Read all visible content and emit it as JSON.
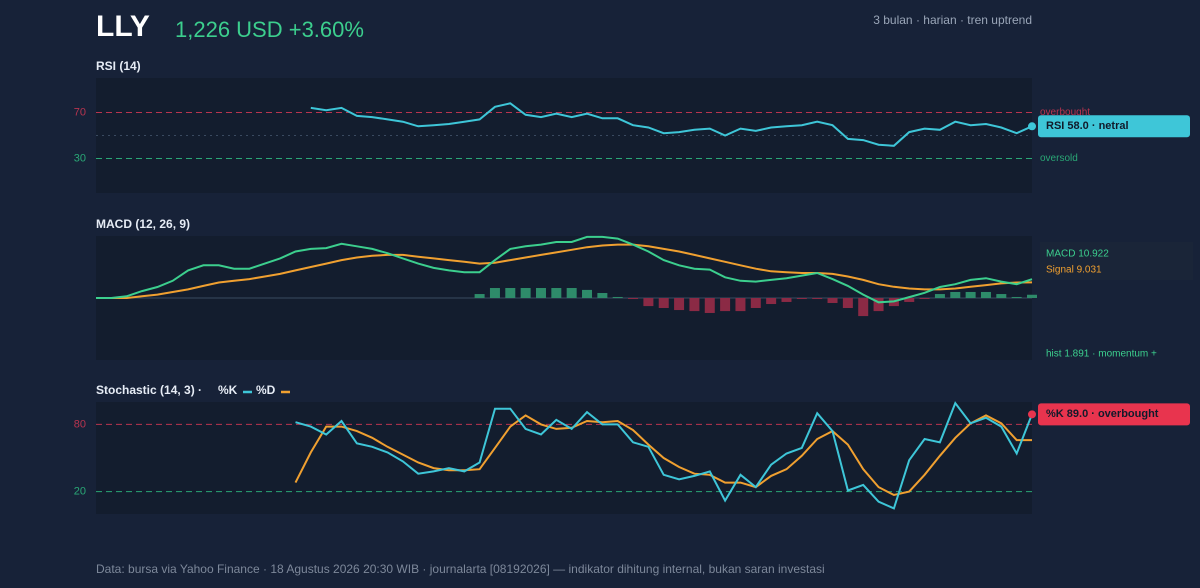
{
  "header": {
    "ticker": "LLY",
    "price": "1,226 USD +3.60%",
    "context": "3 bulan · harian · tren uptrend"
  },
  "footer": "Data: bursa via Yahoo Finance · 18 Agustus 2026 20:30 WIB · journalarta [08192026] — indikator dihitung internal, bukan saran investasi",
  "chart_data": [
    {
      "type": "line",
      "title": "RSI (14)",
      "ylim": [
        0,
        100
      ],
      "yticks": [
        30,
        70
      ],
      "reference_lines": [
        {
          "value": 70,
          "color": "#b8344f",
          "dash": "dashed",
          "label": "overbought"
        },
        {
          "value": 30,
          "color": "#2aa876",
          "dash": "dashed",
          "label": "oversold"
        },
        {
          "value": 50,
          "color": "#3a4a60",
          "dash": "dotted"
        }
      ],
      "series": [
        {
          "name": "RSI",
          "color": "#3ec6d8",
          "end_marker": true,
          "values": [
            null,
            null,
            null,
            null,
            null,
            null,
            null,
            null,
            null,
            null,
            null,
            null,
            null,
            null,
            74,
            72,
            74,
            67,
            66,
            64,
            62,
            58,
            59,
            60,
            62,
            64,
            75,
            78,
            68,
            66,
            69,
            66,
            69,
            65,
            65,
            59,
            57,
            52,
            53,
            55,
            56,
            50,
            56,
            54,
            57,
            58,
            59,
            62,
            59,
            47,
            46,
            42,
            41,
            53,
            56,
            55,
            62,
            59,
            60,
            57,
            52,
            58
          ]
        }
      ],
      "badge": {
        "text": "RSI 58.0 · netral",
        "color": "#3ec6d8"
      }
    },
    {
      "type": "line",
      "title": "MACD (12, 26, 9)",
      "ylim": [
        -36,
        36
      ],
      "reference_lines": [
        {
          "value": 0,
          "color": "#3a4a60",
          "dash": "solid"
        }
      ],
      "series": [
        {
          "name": "hist",
          "type": "bar",
          "color": "#2e8b6a",
          "negative_color": "#8b2a45",
          "values": [
            null,
            null,
            null,
            null,
            null,
            null,
            null,
            null,
            null,
            null,
            null,
            null,
            null,
            null,
            null,
            null,
            null,
            null,
            null,
            null,
            null,
            null,
            null,
            null,
            null,
            2.3,
            5.8,
            5.8,
            5.8,
            5.8,
            5.8,
            5.8,
            4.7,
            2.9,
            0.6,
            -0.6,
            -4.7,
            -5.8,
            -7,
            -7.6,
            -8.7,
            -7.6,
            -7.6,
            -5.8,
            -3.5,
            -2.3,
            -0.6,
            -0.6,
            -2.9,
            -5.8,
            -10.5,
            -7.6,
            -4.7,
            -2.3,
            -0.6,
            2.3,
            3.5,
            3.5,
            3.5,
            2.3,
            0.6,
            1.891
          ]
        },
        {
          "name": "Signal",
          "type": "line",
          "color": "#f0a030",
          "values": [
            0,
            0,
            0,
            1,
            2,
            3.5,
            5,
            7,
            9,
            10,
            11,
            12.5,
            14,
            16,
            18,
            20,
            22,
            23.5,
            24.5,
            25,
            25,
            24,
            23,
            22,
            21,
            20,
            20.5,
            22,
            23.5,
            25,
            26.5,
            28,
            29.5,
            30.5,
            31,
            31,
            30,
            28.5,
            27,
            25,
            23,
            21,
            19,
            17,
            15.5,
            15,
            14.5,
            14.5,
            14,
            12.5,
            10.5,
            8,
            6.5,
            5.5,
            5,
            5,
            5.5,
            6.5,
            7.5,
            8.5,
            9,
            9.031
          ]
        },
        {
          "name": "MACD",
          "type": "line",
          "color": "#3ccf8e",
          "values": [
            0,
            0,
            1,
            4,
            6.4,
            10,
            16,
            19,
            19,
            17,
            17,
            20,
            23,
            27,
            28.5,
            29,
            31.5,
            30,
            28.5,
            26,
            23,
            20,
            17.5,
            16,
            15,
            15,
            22,
            28.5,
            30,
            31,
            32.5,
            32.5,
            35.5,
            35.5,
            34.5,
            31,
            27,
            22,
            19,
            17,
            16.5,
            12,
            10,
            9.5,
            10.5,
            11.5,
            13,
            14.5,
            11,
            7,
            2,
            -2.5,
            -2,
            0.5,
            3,
            6.4,
            8,
            10.5,
            11.5,
            9.5,
            8,
            10.922
          ]
        }
      ],
      "annotations": [
        {
          "text": "MACD 10.922",
          "color": "#3ccf8e"
        },
        {
          "text": "Signal 9.031",
          "color": "#f0a030"
        },
        {
          "text": "hist 1.891 · momentum +",
          "color": "#3ccf8e"
        }
      ]
    },
    {
      "type": "line",
      "title": "Stochastic (14, 3) ·",
      "ylim": [
        0,
        100
      ],
      "yticks": [
        20,
        80
      ],
      "reference_lines": [
        {
          "value": 80,
          "color": "#b8344f",
          "dash": "dashed"
        },
        {
          "value": 20,
          "color": "#2aa876",
          "dash": "dashed"
        }
      ],
      "series": [
        {
          "name": "%D",
          "color": "#f0a030",
          "values": [
            null,
            null,
            null,
            null,
            null,
            null,
            null,
            null,
            null,
            null,
            null,
            null,
            null,
            28,
            55,
            78,
            78,
            74,
            68,
            60,
            53,
            46,
            41,
            39,
            39,
            40,
            59,
            78,
            88,
            80,
            76,
            77,
            83,
            82,
            83,
            75,
            62,
            50,
            42,
            36,
            35,
            28,
            28,
            24,
            34,
            40,
            52,
            67,
            74,
            62,
            40,
            24,
            17,
            20,
            35,
            52,
            68,
            81,
            88,
            81,
            66,
            66
          ]
        },
        {
          "name": "%K",
          "color": "#3ec6d8",
          "end_marker": true,
          "marker_color": "#e8344e",
          "values": [
            null,
            null,
            null,
            null,
            null,
            null,
            null,
            null,
            null,
            null,
            null,
            null,
            null,
            82,
            78,
            71,
            83,
            63,
            60,
            55,
            47,
            36,
            38,
            41,
            38,
            46,
            94,
            94,
            76,
            71,
            84,
            76,
            91,
            80,
            80,
            64,
            60,
            35,
            31,
            34,
            38,
            12,
            35,
            24,
            44,
            54,
            59,
            90,
            74,
            21,
            26,
            11,
            5,
            48,
            67,
            64,
            99,
            81,
            86,
            78,
            54,
            89
          ]
        }
      ],
      "legend_order": [
        1,
        0
      ],
      "badge": {
        "text": "%K 89.0 · overbought",
        "color": "#e8344e"
      }
    }
  ]
}
